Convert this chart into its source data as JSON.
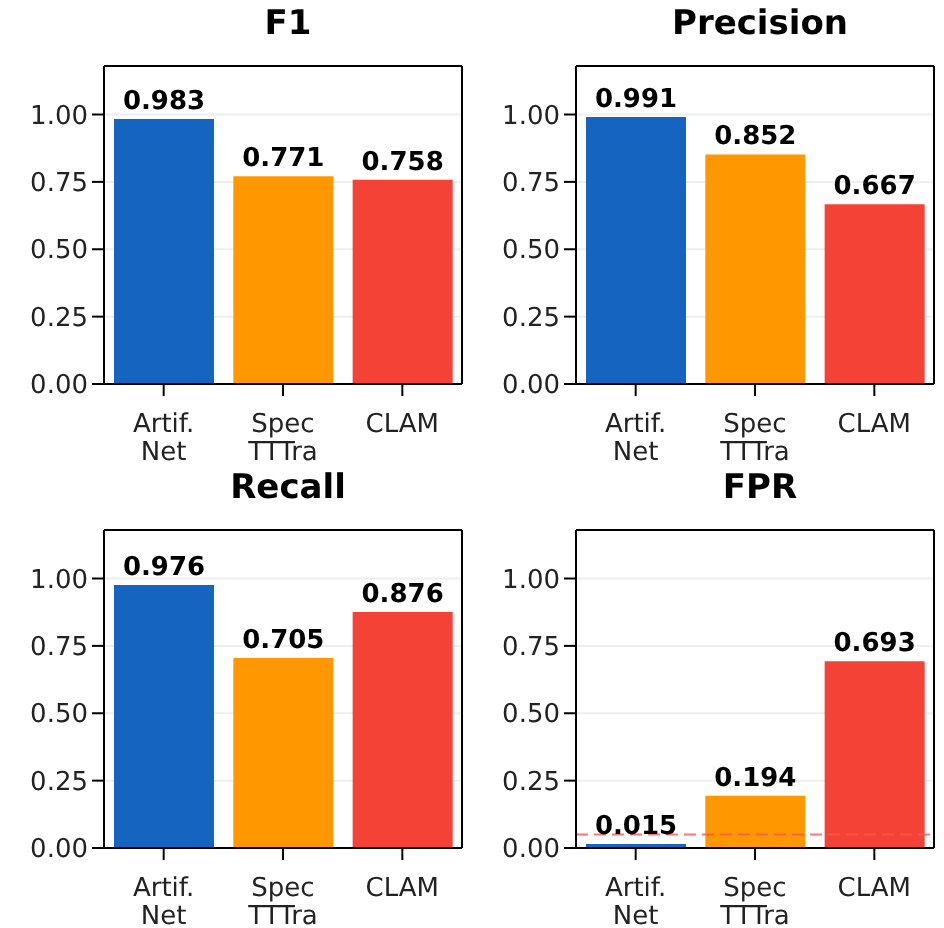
{
  "chart_data": [
    {
      "type": "bar",
      "title": "F1",
      "categories": [
        "Artif.\nNet",
        "Spec\nTTTra",
        "CLAM"
      ],
      "values": [
        0.983,
        0.771,
        0.758
      ],
      "colors": [
        "#1565c0",
        "#ff9800",
        "#f44336"
      ],
      "ylim": [
        0,
        1.18
      ],
      "yticks": [
        {
          "value": 0,
          "label": "0.00"
        },
        {
          "value": 0.25,
          "label": "0.25"
        },
        {
          "value": 0.5,
          "label": "0.50"
        },
        {
          "value": 0.75,
          "label": "0.75"
        },
        {
          "value": 1,
          "label": "1.00"
        }
      ],
      "grid": "y",
      "data_labels": true
    },
    {
      "type": "bar",
      "title": "Precision",
      "categories": [
        "Artif.\nNet",
        "Spec\nTTTra",
        "CLAM"
      ],
      "values": [
        0.991,
        0.852,
        0.667
      ],
      "colors": [
        "#1565c0",
        "#ff9800",
        "#f44336"
      ],
      "ylim": [
        0,
        1.18
      ],
      "yticks": [
        {
          "value": 0,
          "label": "0.00"
        },
        {
          "value": 0.25,
          "label": "0.25"
        },
        {
          "value": 0.5,
          "label": "0.50"
        },
        {
          "value": 0.75,
          "label": "0.75"
        },
        {
          "value": 1,
          "label": "1.00"
        }
      ],
      "grid": "y",
      "data_labels": true
    },
    {
      "type": "bar",
      "title": "Recall",
      "categories": [
        "Artif.\nNet",
        "Spec\nTTTra",
        "CLAM"
      ],
      "values": [
        0.976,
        0.705,
        0.876
      ],
      "colors": [
        "#1565c0",
        "#ff9800",
        "#f44336"
      ],
      "ylim": [
        0,
        1.18
      ],
      "yticks": [
        {
          "value": 0,
          "label": "0.00"
        },
        {
          "value": 0.25,
          "label": "0.25"
        },
        {
          "value": 0.5,
          "label": "0.50"
        },
        {
          "value": 0.75,
          "label": "0.75"
        },
        {
          "value": 1,
          "label": "1.00"
        }
      ],
      "grid": "y",
      "data_labels": true
    },
    {
      "type": "bar",
      "title": "FPR",
      "categories": [
        "Artif.\nNet",
        "Spec\nTTTra",
        "CLAM"
      ],
      "values": [
        0.015,
        0.194,
        0.693
      ],
      "colors": [
        "#1565c0",
        "#ff9800",
        "#f44336"
      ],
      "ylim": [
        0,
        1.18
      ],
      "yticks": [
        {
          "value": 0,
          "label": "0.00"
        },
        {
          "value": 0.25,
          "label": "0.25"
        },
        {
          "value": 0.5,
          "label": "0.50"
        },
        {
          "value": 0.75,
          "label": "0.75"
        },
        {
          "value": 1,
          "label": "1.00"
        }
      ],
      "grid": "y",
      "data_labels": true,
      "ref_lines": [
        {
          "axis": "y",
          "value": 0.05,
          "color": "#ff5252",
          "line_style": "dashed"
        }
      ]
    }
  ]
}
